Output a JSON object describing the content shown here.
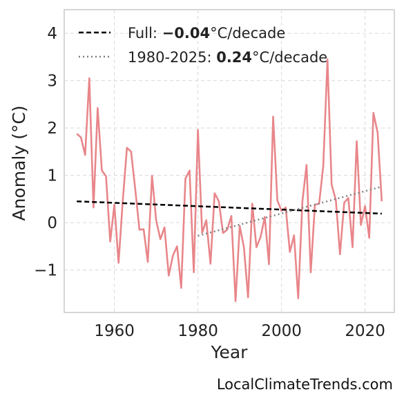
{
  "chart_data": {
    "type": "line",
    "xlabel": "Year",
    "ylabel": "Anomaly (°C)",
    "xlim": [
      1948,
      2027
    ],
    "ylim": [
      -1.9,
      4.5
    ],
    "x_ticks": [
      1960,
      1980,
      2000,
      2020
    ],
    "y_ticks": [
      -1,
      0,
      1,
      2,
      3,
      4
    ],
    "y_tick_labels": [
      "−1",
      "0",
      "1",
      "2",
      "3",
      "4"
    ],
    "grid": true,
    "legend_position": "top-left",
    "series": [
      {
        "style": "solid",
        "color": "#e8868a",
        "x": [
          1951,
          1952,
          1953,
          1954,
          1955,
          1956,
          1957,
          1958,
          1959,
          1960,
          1961,
          1962,
          1963,
          1964,
          1965,
          1966,
          1967,
          1968,
          1969,
          1970,
          1971,
          1972,
          1973,
          1974,
          1975,
          1976,
          1977,
          1978,
          1979,
          1980,
          1981,
          1982,
          1983,
          1984,
          1985,
          1986,
          1987,
          1988,
          1989,
          1990,
          1991,
          1992,
          1993,
          1994,
          1995,
          1996,
          1997,
          1998,
          1999,
          2000,
          2001,
          2002,
          2003,
          2004,
          2005,
          2006,
          2007,
          2008,
          2009,
          2010,
          2011,
          2012,
          2013,
          2014,
          2015,
          2016,
          2017,
          2018,
          2019,
          2020,
          2021,
          2022,
          2023,
          2024
        ],
        "y": [
          1.88,
          1.8,
          1.43,
          3.05,
          0.32,
          2.42,
          1.1,
          0.98,
          -0.4,
          0.38,
          -0.85,
          0.45,
          1.58,
          1.5,
          0.7,
          -0.15,
          -0.14,
          -0.83,
          0.99,
          0.05,
          -0.35,
          -0.1,
          -1.12,
          -0.7,
          -0.5,
          -1.38,
          0.93,
          1.1,
          -1.05,
          1.96,
          -0.22,
          0.05,
          -0.87,
          0.62,
          0.45,
          -0.22,
          -0.15,
          0.14,
          -1.66,
          -0.07,
          -0.52,
          -1.58,
          0.4,
          -0.52,
          -0.3,
          0.12,
          -0.88,
          2.24,
          0.47,
          0.25,
          0.32,
          -0.62,
          -0.27,
          -1.6,
          0.45,
          1.22,
          -1.05,
          0.38,
          0.4,
          1.2,
          3.45,
          0.8,
          0.48,
          -0.67,
          0.42,
          0.52,
          -0.52,
          1.72,
          -0.05,
          0.35,
          -0.32,
          2.32,
          1.9,
          0.45
        ]
      },
      {
        "name": "Full",
        "style": "dashed",
        "color": "#000000",
        "x": [
          1951,
          2024
        ],
        "y": [
          0.45,
          0.19
        ]
      },
      {
        "name": "1980-2025",
        "style": "dotted",
        "color": "#808080",
        "x": [
          1980,
          2024
        ],
        "y": [
          -0.28,
          0.76
        ]
      }
    ],
    "legend": [
      {
        "prefix": "Full: ",
        "value": "−0.04",
        "suffix": "°C/decade",
        "style": "dashed",
        "color": "#000000"
      },
      {
        "prefix": "1980-2025: ",
        "value": "0.24",
        "suffix": "°C/decade",
        "style": "dotted",
        "color": "#808080"
      }
    ]
  },
  "credit": "LocalClimateTrends.com"
}
